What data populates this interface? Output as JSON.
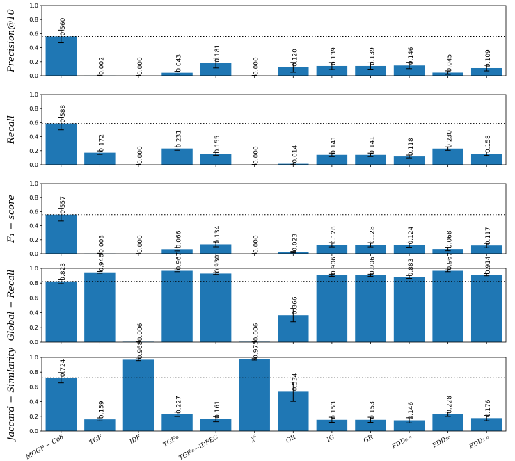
{
  "colors": {
    "bar": "#1f77b4",
    "error": "#000000",
    "axis": "#000000",
    "reference_line": "#000000"
  },
  "chart_data": {
    "type": "bar",
    "layout": "5 vertically stacked panels with shared x-axis categories, error bars, value labels and a dotted horizontal reference line",
    "categories": [
      "MOGP − Coδ",
      "TGF",
      "IDF",
      "TGF∗",
      "TGF∗−IDFEC",
      "χ²",
      "OR",
      "IG",
      "GR",
      "FDD₀.₅",
      "FDD₁₀",
      "FDD₁.₀"
    ],
    "ylim": [
      0,
      1
    ],
    "yticks": [
      "0.0",
      "0.2",
      "0.4",
      "0.6",
      "0.8",
      "1.0"
    ],
    "grid": false,
    "panels": [
      {
        "ylabel": "Precision@10",
        "reference": 0.56,
        "values": [
          0.56,
          0.002,
          0.0,
          0.043,
          0.181,
          0.0,
          0.12,
          0.139,
          0.139,
          0.146,
          0.045,
          0.109
        ],
        "labels": [
          "0.560",
          "0.002",
          "0.000",
          "0.043",
          "0.181",
          "0.000",
          "0.120",
          "0.139",
          "0.139",
          "0.146",
          "0.045",
          "0.109"
        ],
        "errors": [
          0.09,
          0.005,
          0.005,
          0.02,
          0.07,
          0.005,
          0.07,
          0.05,
          0.045,
          0.045,
          0.025,
          0.04
        ]
      },
      {
        "ylabel": "Recall",
        "reference": 0.588,
        "values": [
          0.588,
          0.172,
          0.0,
          0.231,
          0.155,
          0.0,
          0.014,
          0.141,
          0.141,
          0.118,
          0.23,
          0.158
        ],
        "labels": [
          "0.588",
          "0.172",
          "0.000",
          "0.231",
          "0.155",
          "0.000",
          "0.014",
          "0.141",
          "0.141",
          "0.118",
          "0.230",
          "0.158"
        ],
        "errors": [
          0.09,
          0.025,
          0.005,
          0.025,
          0.02,
          0.005,
          0.01,
          0.025,
          0.025,
          0.02,
          0.025,
          0.025
        ]
      },
      {
        "ylabel": "F₁ − score",
        "reference": 0.557,
        "values": [
          0.557,
          0.003,
          0.0,
          0.066,
          0.134,
          0.0,
          0.023,
          0.128,
          0.128,
          0.124,
          0.068,
          0.117
        ],
        "labels": [
          "0.557",
          "0.003",
          "0.000",
          "0.066",
          "0.134",
          "0.000",
          "0.023",
          "0.128",
          "0.128",
          "0.124",
          "0.068",
          "0.117"
        ],
        "errors": [
          0.09,
          0.004,
          0.004,
          0.025,
          0.035,
          0.004,
          0.01,
          0.03,
          0.03,
          0.03,
          0.025,
          0.03
        ]
      },
      {
        "ylabel": "Global − Recall",
        "reference": 0.823,
        "values": [
          0.823,
          0.946,
          0.006,
          0.967,
          0.93,
          0.006,
          0.366,
          0.906,
          0.906,
          0.883,
          0.967,
          0.914
        ],
        "labels": [
          "0.823",
          "0.946",
          "0.006",
          "0.967",
          "0.930",
          "0.006",
          "0.366",
          "0.906",
          "0.906",
          "0.883",
          "0.967",
          "0.914"
        ],
        "errors": [
          0.03,
          0.012,
          0.004,
          0.012,
          0.012,
          0.004,
          0.09,
          0.015,
          0.015,
          0.02,
          0.012,
          0.015
        ]
      },
      {
        "ylabel": "Jaccard − Similarity",
        "reference": 0.724,
        "values": [
          0.724,
          0.159,
          0.968,
          0.227,
          0.161,
          0.973,
          0.534,
          0.153,
          0.153,
          0.146,
          0.228,
          0.176
        ],
        "labels": [
          "0.724",
          "0.159",
          "0.968",
          "0.227",
          "0.161",
          "0.973",
          "0.534",
          "0.153",
          "0.153",
          "0.146",
          "0.228",
          "0.176"
        ],
        "errors": [
          0.07,
          0.02,
          0.012,
          0.03,
          0.035,
          0.01,
          0.13,
          0.035,
          0.035,
          0.035,
          0.03,
          0.035
        ]
      }
    ]
  }
}
